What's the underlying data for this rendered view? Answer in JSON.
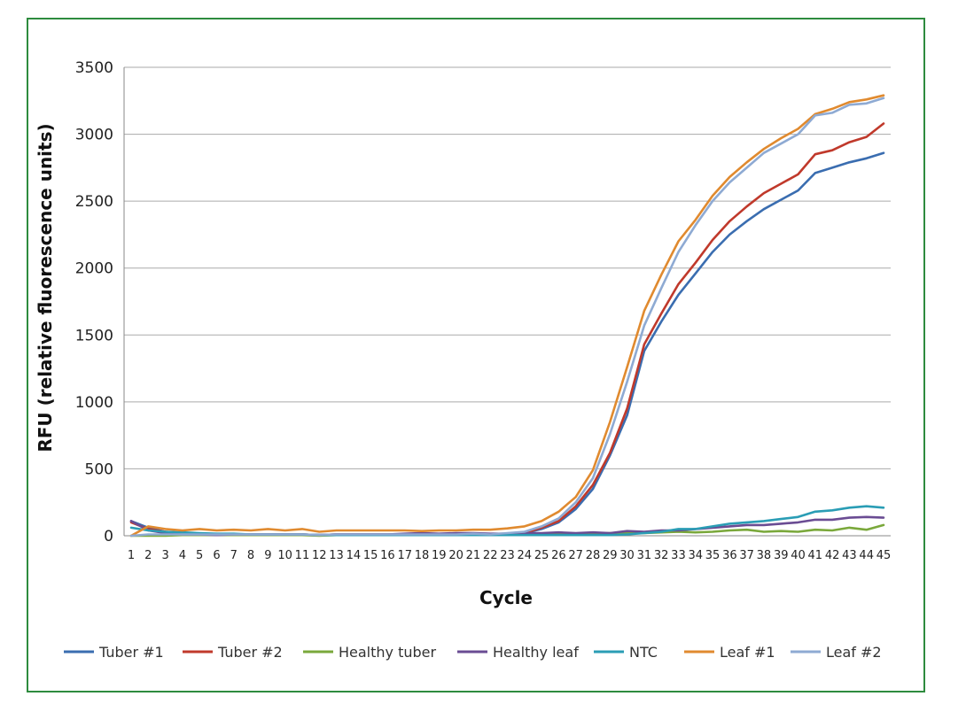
{
  "chart_data": {
    "type": "line",
    "xlabel": "Cycle",
    "ylabel": "RFU (relative fluorescence units)",
    "ylim": [
      0,
      3500
    ],
    "yticks": [
      0,
      500,
      1000,
      1500,
      2000,
      2500,
      3000,
      3500
    ],
    "grid": "horizontal",
    "legend_position": "bottom",
    "x": [
      1,
      2,
      3,
      4,
      5,
      6,
      7,
      8,
      9,
      10,
      11,
      12,
      13,
      14,
      15,
      16,
      17,
      18,
      19,
      20,
      21,
      22,
      23,
      24,
      25,
      26,
      27,
      28,
      29,
      30,
      31,
      32,
      33,
      34,
      35,
      36,
      37,
      38,
      39,
      40,
      41,
      42,
      43,
      44,
      45
    ],
    "series": [
      {
        "name": "Tuber #1",
        "color": "#3a6db0",
        "values": [
          110,
          60,
          30,
          20,
          15,
          10,
          10,
          10,
          10,
          10,
          10,
          5,
          10,
          10,
          10,
          10,
          10,
          10,
          10,
          10,
          15,
          10,
          15,
          20,
          50,
          100,
          200,
          350,
          600,
          900,
          1380,
          1600,
          1800,
          1960,
          2120,
          2250,
          2350,
          2440,
          2510,
          2580,
          2710,
          2750,
          2790,
          2820,
          2860
        ]
      },
      {
        "name": "Tuber #2",
        "color": "#c0392b",
        "values": [
          100,
          50,
          30,
          20,
          15,
          10,
          10,
          10,
          10,
          10,
          10,
          5,
          10,
          10,
          10,
          10,
          10,
          10,
          10,
          10,
          15,
          10,
          15,
          20,
          60,
          110,
          220,
          380,
          620,
          950,
          1430,
          1660,
          1880,
          2040,
          2210,
          2350,
          2460,
          2560,
          2630,
          2700,
          2850,
          2880,
          2940,
          2980,
          3080
        ]
      },
      {
        "name": "Healthy tuber",
        "color": "#7aa83b",
        "values": [
          0,
          0,
          0,
          5,
          5,
          5,
          5,
          5,
          5,
          5,
          5,
          0,
          5,
          5,
          5,
          5,
          5,
          5,
          5,
          5,
          5,
          5,
          5,
          5,
          5,
          10,
          10,
          15,
          20,
          20,
          20,
          25,
          30,
          25,
          30,
          40,
          45,
          30,
          35,
          30,
          45,
          40,
          60,
          45,
          80
        ]
      },
      {
        "name": "Healthy leaf",
        "color": "#6a4c93",
        "values": [
          110,
          40,
          20,
          10,
          10,
          5,
          10,
          10,
          10,
          10,
          10,
          5,
          10,
          10,
          10,
          10,
          15,
          20,
          15,
          20,
          20,
          15,
          15,
          20,
          20,
          25,
          20,
          25,
          20,
          35,
          30,
          40,
          40,
          50,
          60,
          70,
          80,
          80,
          90,
          100,
          120,
          120,
          135,
          140,
          135
        ]
      },
      {
        "name": "NTC",
        "color": "#2a9db5",
        "values": [
          60,
          40,
          30,
          25,
          20,
          15,
          15,
          10,
          10,
          10,
          10,
          5,
          5,
          5,
          5,
          5,
          5,
          5,
          5,
          5,
          5,
          5,
          5,
          5,
          5,
          5,
          5,
          5,
          5,
          10,
          20,
          30,
          50,
          50,
          70,
          90,
          100,
          110,
          125,
          140,
          180,
          190,
          210,
          220,
          210
        ]
      },
      {
        "name": "Leaf #1",
        "color": "#e08a2f",
        "values": [
          0,
          70,
          50,
          40,
          50,
          40,
          45,
          40,
          50,
          40,
          50,
          30,
          40,
          40,
          40,
          40,
          40,
          35,
          40,
          40,
          45,
          45,
          55,
          70,
          110,
          180,
          290,
          490,
          850,
          1260,
          1680,
          1950,
          2200,
          2360,
          2540,
          2680,
          2790,
          2890,
          2970,
          3040,
          3150,
          3190,
          3240,
          3260,
          3290
        ]
      },
      {
        "name": "Leaf #2",
        "color": "#8eaad3",
        "values": [
          0,
          10,
          10,
          10,
          10,
          10,
          10,
          10,
          10,
          10,
          10,
          5,
          10,
          10,
          10,
          10,
          10,
          10,
          10,
          10,
          15,
          10,
          20,
          30,
          70,
          130,
          250,
          430,
          760,
          1150,
          1570,
          1850,
          2120,
          2320,
          2500,
          2640,
          2750,
          2860,
          2930,
          3000,
          3140,
          3160,
          3220,
          3230,
          3270
        ]
      }
    ]
  }
}
